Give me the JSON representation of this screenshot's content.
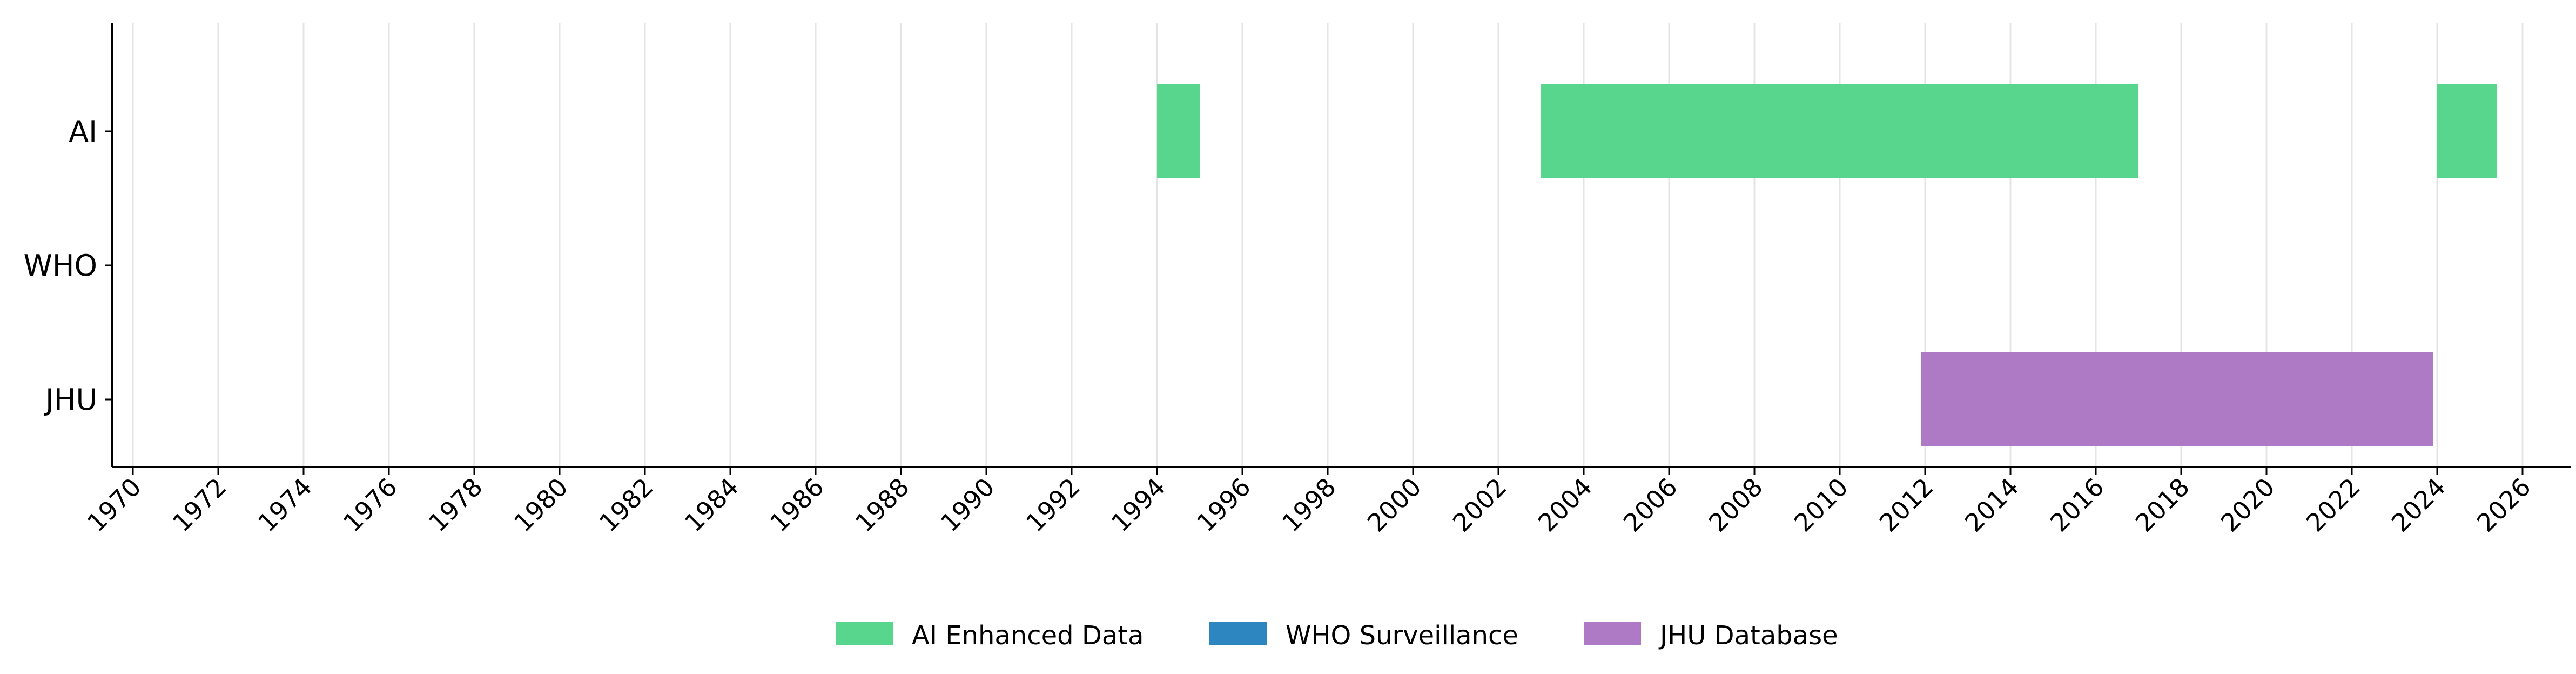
{
  "chart_data": {
    "type": "gantt",
    "title": "",
    "xlabel": "",
    "ylabel": "",
    "xlim": [
      1969.5,
      2026.5
    ],
    "x_ticks": [
      "1970",
      "1972",
      "1974",
      "1976",
      "1978",
      "1980",
      "1982",
      "1984",
      "1986",
      "1988",
      "1990",
      "1992",
      "1994",
      "1996",
      "1998",
      "2000",
      "2002",
      "2004",
      "2006",
      "2008",
      "2010",
      "2012",
      "2014",
      "2016",
      "2018",
      "2020",
      "2022",
      "2024",
      "2026"
    ],
    "categories": [
      "AI",
      "WHO",
      "JHU"
    ],
    "grid": true,
    "legend_position": "bottom-center",
    "series": [
      {
        "name": "AI Enhanced Data",
        "category": "AI",
        "color": "#58d68d",
        "intervals": [
          [
            1994.0,
            1995.0
          ],
          [
            2003.0,
            2017.0
          ],
          [
            2024.0,
            2025.4
          ]
        ]
      },
      {
        "name": "WHO Surveillance",
        "category": "WHO",
        "color": "#2e86c1",
        "intervals": []
      },
      {
        "name": "JHU Database",
        "category": "JHU",
        "color": "#af7ac5",
        "intervals": [
          [
            2011.9,
            2023.9
          ]
        ]
      }
    ]
  }
}
